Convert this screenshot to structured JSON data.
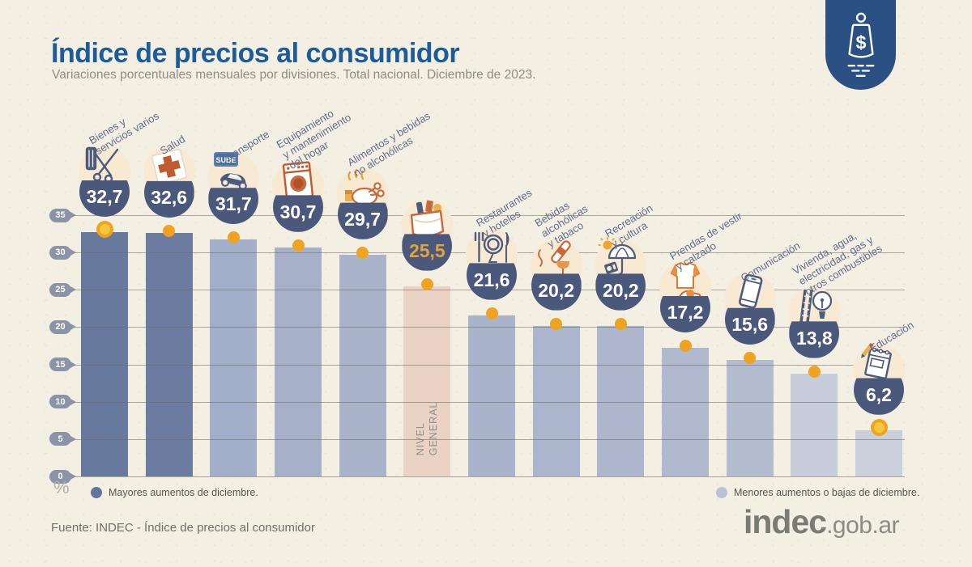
{
  "header": {
    "title": "Índice de precios al consumidor",
    "subtitle": "Variaciones porcentuales mensuales por divisiones. Total nacional. Diciembre de 2023.",
    "badge_icon": "price-tag-icon",
    "badge_symbol": "$",
    "badge_color": "#2b5184",
    "title_color": "#1d5c9a"
  },
  "chart_data": {
    "type": "bar",
    "title": "Índice de precios al consumidor",
    "subtitle": "Variaciones porcentuales mensuales por divisiones. Total nacional. Diciembre de 2023.",
    "xlabel": "",
    "ylabel": "%",
    "ylim": [
      0,
      35
    ],
    "yticks": [
      0,
      5,
      10,
      15,
      20,
      25,
      30,
      35
    ],
    "grid": true,
    "highlight_category": "NIVEL GENERAL",
    "categories": [
      {
        "label": "Bienes y servicios varios",
        "label_lines": "Bienes y\nservicios varios",
        "value": 32.7,
        "display_value": "32,7",
        "bar_color": "#68799e",
        "group": "mayores",
        "icon": "scissors-comb-icon",
        "marker": "coin"
      },
      {
        "label": "Salud",
        "label_lines": "Salud",
        "value": 32.6,
        "display_value": "32,6",
        "bar_color": "#6b7ca0",
        "group": "mayores",
        "icon": "medical-cross-icon",
        "marker": "dot"
      },
      {
        "label": "Transporte",
        "label_lines": "Transporte",
        "value": 31.7,
        "display_value": "31,7",
        "bar_color": "#a3aec8",
        "group": "menores",
        "icon": "sube-card-car-icon",
        "icon_text": "SUBE",
        "marker": "dot"
      },
      {
        "label": "Equipamiento y mantenimiento del hogar",
        "label_lines": "Equipamiento\ny mantenimiento\ndel hogar",
        "value": 30.7,
        "display_value": "30,7",
        "bar_color": "#a6b1c9",
        "group": "menores",
        "icon": "washing-machine-icon",
        "marker": "dot"
      },
      {
        "label": "Alimentos y bebidas no alcohólicas",
        "label_lines": "Alimentos y bebidas\nno alcohólicas",
        "value": 29.7,
        "display_value": "29,7",
        "bar_color": "#a9b3ca",
        "group": "menores",
        "icon": "roast-chicken-icon",
        "marker": "dot"
      },
      {
        "label": "NIVEL GENERAL",
        "label_lines": "",
        "inbar_label": "NIVEL\nGENERAL",
        "value": 25.5,
        "display_value": "25,5",
        "bar_color": "#ead3c5",
        "value_color": "#e2a33c",
        "group": "general",
        "icon": "grocery-bag-icon",
        "marker": "dot"
      },
      {
        "label": "Restaurantes y hoteles",
        "label_lines": "Restaurantes\ny hoteles",
        "value": 21.6,
        "display_value": "21,6",
        "bar_color": "#a9b4cb",
        "group": "menores",
        "icon": "fork-plate-icon",
        "marker": "dot"
      },
      {
        "label": "Bebidas alcohólicas y tabaco",
        "label_lines": "Bebidas\nalcohólicas\ny tabaco",
        "value": 20.2,
        "display_value": "20,2",
        "bar_color": "#abb5cb",
        "group": "menores",
        "icon": "wine-tobacco-icon",
        "marker": "dot"
      },
      {
        "label": "Recreación y cultura",
        "label_lines": "Recreación\ny cultura",
        "value": 20.2,
        "display_value": "20,2",
        "bar_color": "#adb6cc",
        "group": "menores",
        "icon": "umbrella-sun-icon",
        "marker": "dot"
      },
      {
        "label": "Prendas de vestir y calzado",
        "label_lines": "Prendas de vestir\ny calzado",
        "value": 17.2,
        "display_value": "17,2",
        "bar_color": "#b0b9cd",
        "group": "menores",
        "icon": "tshirt-shoe-icon",
        "marker": "dot"
      },
      {
        "label": "Comunicación",
        "label_lines": "Comunicación",
        "value": 15.6,
        "display_value": "15,6",
        "bar_color": "#b3bbce",
        "group": "menores",
        "icon": "smartphone-icon",
        "marker": "dot"
      },
      {
        "label": "Vivienda, agua, electricidad, gas y otros combustibles",
        "label_lines": "Vivienda, agua,\nelectricidad, gas y\notros combustibles",
        "value": 13.8,
        "display_value": "13,8",
        "bar_color": "#c7cdda",
        "group": "menores",
        "icon": "bulb-pipes-icon",
        "marker": "dot"
      },
      {
        "label": "Educación",
        "label_lines": "Educación",
        "value": 6.2,
        "display_value": "6,2",
        "bar_color": "#c9cfdb",
        "group": "menores",
        "icon": "notebook-pencil-icon",
        "marker": "coin"
      }
    ]
  },
  "legend": {
    "mayores": {
      "label": "Mayores aumentos de diciembre.",
      "color": "#64759c"
    },
    "menores": {
      "label": "Menores aumentos o bajas de diciembre.",
      "color": "#b9c1d3"
    }
  },
  "footer": {
    "source": "Fuente: INDEC - Índice de precios al consumidor",
    "logo_main": "indec",
    "logo_suffix": ".gob.ar"
  },
  "colors": {
    "background": "#f4efe3",
    "bowl": "#4a587c",
    "marker": "#efa31f",
    "grid": "#6c6a62",
    "axis_pill": "#8b93a7",
    "label_text": "#5f6b8c",
    "general_bar": "#ead3c5",
    "general_value": "#e2a33c"
  }
}
